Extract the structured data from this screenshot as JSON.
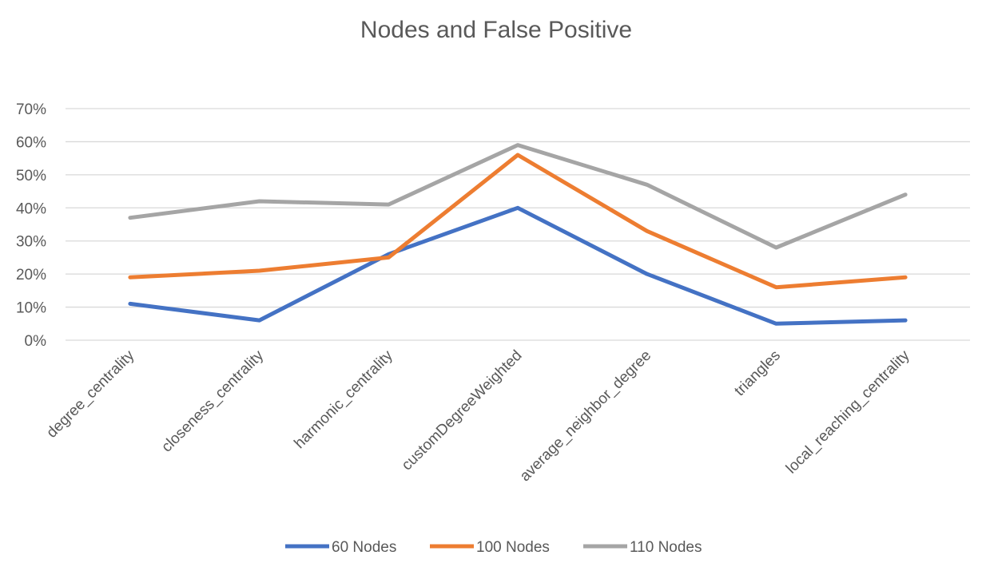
{
  "chart_data": {
    "type": "line",
    "title": "Nodes and False Positive",
    "categories": [
      "degree_centrality",
      "closeness_centrality",
      "harmonic_centrality",
      "customDegreeWeighted",
      "average_neighbor_degree",
      "triangles",
      "local_reaching_centrality"
    ],
    "series": [
      {
        "name": "60 Nodes",
        "color": "#4472c4",
        "values": [
          0.11,
          0.06,
          0.26,
          0.4,
          0.2,
          0.05,
          0.06
        ]
      },
      {
        "name": "100 Nodes",
        "color": "#ed7d31",
        "values": [
          0.19,
          0.21,
          0.25,
          0.56,
          0.33,
          0.16,
          0.19
        ]
      },
      {
        "name": "110 Nodes",
        "color": "#a5a5a5",
        "values": [
          0.37,
          0.42,
          0.41,
          0.59,
          0.47,
          0.28,
          0.44
        ]
      }
    ],
    "yticks": [
      "0%",
      "10%",
      "20%",
      "30%",
      "40%",
      "50%",
      "60%",
      "70%"
    ],
    "ylim": [
      0,
      0.7
    ],
    "grid": true,
    "legend_position": "bottom"
  }
}
